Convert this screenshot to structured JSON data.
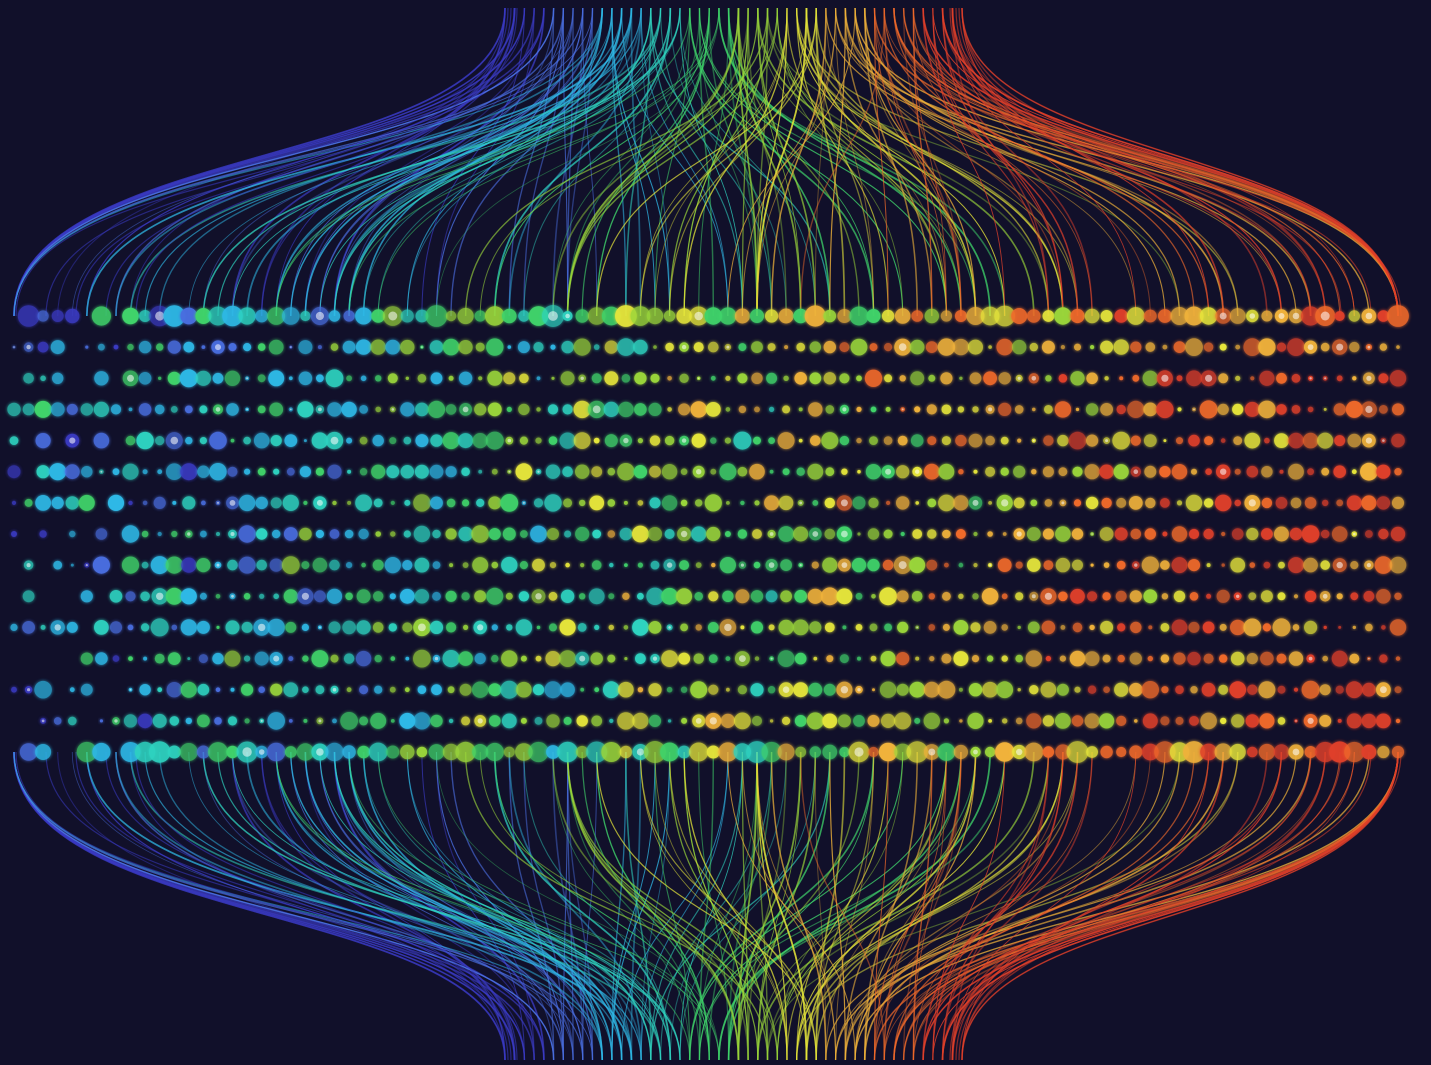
{
  "image": {
    "description_free": true,
    "background": "#11102a",
    "palette": [
      "#3b3bc4",
      "#4a6ee0",
      "#2fb8e6",
      "#2fd3c0",
      "#3fd36a",
      "#9ad63a",
      "#e6e63a",
      "#f0b23a",
      "#f06a2a",
      "#e0402a"
    ],
    "dot_grid": {
      "rows": 15,
      "columns": 96
    },
    "strands": {
      "bundle_count": 2
    }
  }
}
